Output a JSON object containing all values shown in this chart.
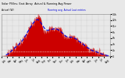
{
  "bg_color": "#e8e8e8",
  "plot_bg": "#e8e8e8",
  "grid_color": "#aaaaaa",
  "red_fill": "#cc0000",
  "red_line": "#cc0000",
  "blue_dash_color": "#0000dd",
  "white_ref_color": "#ffffff",
  "ylim": [
    0,
    1400
  ],
  "n_points": 350,
  "title_fontsize": 2.8,
  "tick_fontsize": 2.2,
  "ytick_labels": [
    "0",
    "2h",
    "4h",
    "6h",
    "8h",
    "1k+",
    "12h",
    "14h"
  ],
  "ytick_vals": [
    0,
    200,
    400,
    600,
    800,
    1000,
    1200,
    1400
  ]
}
